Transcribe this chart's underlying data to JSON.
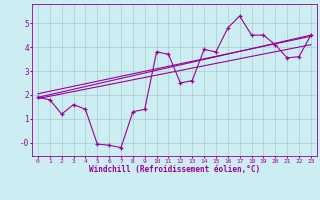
{
  "title": "",
  "xlabel": "Windchill (Refroidissement éolien,°C)",
  "ylabel": "",
  "bg_color": "#cceef2",
  "line_color": "#990099",
  "grid_color": "#aacccc",
  "xlim": [
    -0.5,
    23.5
  ],
  "ylim": [
    -0.55,
    5.8
  ],
  "xticks": [
    0,
    1,
    2,
    3,
    4,
    5,
    6,
    7,
    8,
    9,
    10,
    11,
    12,
    13,
    14,
    15,
    16,
    17,
    18,
    19,
    20,
    21,
    22,
    23
  ],
  "yticks": [
    0,
    1,
    2,
    3,
    4,
    5
  ],
  "ytick_labels": [
    "-0",
    "1",
    "2",
    "3",
    "4",
    "5"
  ],
  "data_x": [
    0,
    1,
    2,
    3,
    4,
    5,
    6,
    7,
    8,
    9,
    10,
    11,
    12,
    13,
    14,
    15,
    16,
    17,
    18,
    19,
    20,
    21,
    22,
    23
  ],
  "data_y": [
    1.9,
    1.8,
    1.2,
    1.6,
    1.4,
    -0.05,
    -0.1,
    -0.2,
    1.3,
    1.4,
    3.8,
    3.7,
    2.5,
    2.6,
    3.9,
    3.8,
    4.8,
    5.3,
    4.5,
    4.5,
    4.1,
    3.55,
    3.6,
    4.5
  ],
  "trend1_x": [
    0,
    23
  ],
  "trend1_y": [
    1.9,
    4.5
  ],
  "trend2_x": [
    0,
    23
  ],
  "trend2_y": [
    1.85,
    4.1
  ],
  "trend3_x": [
    0,
    23
  ],
  "trend3_y": [
    2.05,
    4.45
  ]
}
